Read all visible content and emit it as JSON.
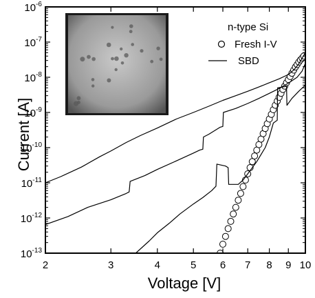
{
  "chart_data": {
    "type": "scatter",
    "xlabel": "Voltage [V]",
    "ylabel": "Current [A]",
    "x_scale": "log",
    "y_scale": "log",
    "xlim": [
      2,
      10
    ],
    "ylim": [
      1e-13,
      1e-06
    ],
    "x_ticks": [
      {
        "value": 2,
        "label": "2"
      },
      {
        "value": 3,
        "label": "3"
      },
      {
        "value": 4,
        "label": "4"
      },
      {
        "value": 5,
        "label": "5"
      },
      {
        "value": 6,
        "label": "6"
      },
      {
        "value": 7,
        "label": "7"
      },
      {
        "value": 8,
        "label": "8"
      },
      {
        "value": 9,
        "label": "9"
      },
      {
        "value": 10,
        "label": "10"
      }
    ],
    "y_ticks": [
      {
        "value": 1e-13,
        "base": "10",
        "exp": "-13"
      },
      {
        "value": 1e-12,
        "base": "10",
        "exp": "-12"
      },
      {
        "value": 1e-11,
        "base": "10",
        "exp": "-11"
      },
      {
        "value": 1e-10,
        "base": "10",
        "exp": "-10"
      },
      {
        "value": 1e-09,
        "base": "10",
        "exp": "-9"
      },
      {
        "value": 1e-08,
        "base": "10",
        "exp": "-8"
      },
      {
        "value": 1e-07,
        "base": "10",
        "exp": "-7"
      },
      {
        "value": 1e-06,
        "base": "10",
        "exp": "-6"
      }
    ],
    "legend": {
      "title": "n-type Si",
      "position": "top-right",
      "entries": [
        {
          "label": "Fresh I-V",
          "marker": "open-circle"
        },
        {
          "label": "SBD",
          "marker": "line"
        }
      ]
    },
    "inset": {
      "type": "micrograph",
      "position": "top-left"
    },
    "series": [
      {
        "name": "Fresh I-V",
        "style": "markers",
        "points": [
          [
            5.9,
            1e-13
          ],
          [
            6.0,
            1.8e-13
          ],
          [
            6.1,
            3e-13
          ],
          [
            6.2,
            5e-13
          ],
          [
            6.3,
            8e-13
          ],
          [
            6.4,
            1.3e-12
          ],
          [
            6.5,
            2e-12
          ],
          [
            6.6,
            3.2e-12
          ],
          [
            6.7,
            5e-12
          ],
          [
            6.8,
            7.8e-12
          ],
          [
            6.9,
            1.2e-11
          ],
          [
            7.0,
            1.8e-11
          ],
          [
            7.1,
            2.7e-11
          ],
          [
            7.2,
            4e-11
          ],
          [
            7.3,
            5.8e-11
          ],
          [
            7.4,
            8.5e-11
          ],
          [
            7.5,
            1.22e-10
          ],
          [
            7.6,
            1.75e-10
          ],
          [
            7.7,
            2.5e-10
          ],
          [
            7.8,
            3.5e-10
          ],
          [
            7.9,
            4.8e-10
          ],
          [
            8.0,
            6.5e-10
          ],
          [
            8.1,
            8.8e-10
          ],
          [
            8.2,
            1.2e-09
          ],
          [
            8.3,
            1.6e-09
          ],
          [
            8.4,
            2.1e-09
          ],
          [
            8.5,
            2.7e-09
          ],
          [
            8.6,
            3.5e-09
          ],
          [
            8.7,
            4.5e-09
          ],
          [
            8.8,
            5.6e-09
          ],
          [
            8.9,
            7e-09
          ],
          [
            9.0,
            8.6e-09
          ],
          [
            9.1,
            1.05e-08
          ],
          [
            9.2,
            1.3e-08
          ],
          [
            9.3,
            1.6e-08
          ],
          [
            9.4,
            1.95e-08
          ],
          [
            9.5,
            2.3e-08
          ],
          [
            9.6,
            2.7e-08
          ],
          [
            9.7,
            3.1e-08
          ],
          [
            9.8,
            3.5e-08
          ],
          [
            9.9,
            4e-08
          ]
        ]
      },
      {
        "name": "SBD",
        "style": "line",
        "points": [
          [
            2.0,
            1e-11
          ],
          [
            2.2,
            1.5e-11
          ],
          [
            2.5,
            2.8e-11
          ],
          [
            2.8,
            5.5e-11
          ],
          [
            3.0,
            8e-11
          ],
          [
            3.3,
            1.4e-10
          ],
          [
            3.6,
            2.2e-10
          ],
          [
            4.0,
            3.6e-10
          ],
          [
            4.5,
            6.5e-10
          ],
          [
            5.0,
            1e-09
          ],
          [
            5.5,
            1.5e-09
          ],
          [
            6.0,
            2.2e-09
          ],
          [
            6.5,
            3e-09
          ],
          [
            7.0,
            4e-09
          ],
          [
            7.5,
            5.3e-09
          ],
          [
            8.0,
            7e-09
          ],
          [
            8.5,
            9e-09
          ],
          [
            9.0,
            1.2e-08
          ],
          [
            9.3,
            1.6e-08
          ],
          [
            9.6,
            2.4e-08
          ],
          [
            9.8,
            3.5e-08
          ],
          [
            10.0,
            5e-08
          ]
        ]
      },
      {
        "name": "SBD",
        "style": "line",
        "points": [
          [
            2.0,
            6.5e-13
          ],
          [
            2.3,
            1.1e-12
          ],
          [
            2.6,
            2e-12
          ],
          [
            3.0,
            3.3e-12
          ],
          [
            3.3,
            5e-12
          ],
          [
            3.36,
            5.5e-12
          ],
          [
            3.38,
            1.1e-11
          ],
          [
            3.7,
            1.6e-11
          ],
          [
            4.0,
            2.4e-11
          ],
          [
            4.5,
            4.2e-11
          ],
          [
            5.0,
            7e-11
          ],
          [
            5.2,
            8.5e-11
          ],
          [
            5.3,
            9e-11
          ],
          [
            5.32,
            2e-10
          ],
          [
            5.5,
            2.4e-10
          ],
          [
            5.9,
            3.8e-10
          ],
          [
            6.0,
            4e-10
          ],
          [
            6.02,
            1e-09
          ],
          [
            6.5,
            1.3e-09
          ],
          [
            7.0,
            1.8e-09
          ],
          [
            7.5,
            2.5e-09
          ],
          [
            8.0,
            3.5e-09
          ],
          [
            8.5,
            4.8e-09
          ],
          [
            9.0,
            6.8e-09
          ],
          [
            9.5,
            1e-08
          ],
          [
            9.8,
            1.5e-08
          ],
          [
            10.0,
            2.5e-08
          ]
        ]
      },
      {
        "name": "SBD",
        "style": "line",
        "points": [
          [
            3.5,
            1e-13
          ],
          [
            3.8,
            2.2e-13
          ],
          [
            4.0,
            3.8e-13
          ],
          [
            4.3,
            7e-13
          ],
          [
            4.6,
            1.3e-12
          ],
          [
            5.0,
            2.5e-12
          ],
          [
            5.3,
            3.8e-12
          ],
          [
            5.6,
            6e-12
          ],
          [
            5.75,
            8e-12
          ],
          [
            5.78,
            3.4e-11
          ],
          [
            6.1,
            3e-11
          ],
          [
            6.2,
            2.7e-11
          ],
          [
            6.22,
            9e-12
          ],
          [
            6.6,
            9e-12
          ],
          [
            6.8,
            1.2e-11
          ],
          [
            7.0,
            1.8e-11
          ],
          [
            7.4,
            4e-11
          ],
          [
            7.8,
            1e-10
          ],
          [
            8.0,
            2e-10
          ],
          [
            8.2,
            5e-10
          ],
          [
            8.4,
            6e-10
          ],
          [
            8.42,
            5e-09
          ],
          [
            8.9,
            5.5e-09
          ],
          [
            8.92,
            1.6e-09
          ],
          [
            9.2,
            2.5e-09
          ],
          [
            9.6,
            4e-09
          ],
          [
            10.0,
            6e-09
          ]
        ]
      }
    ]
  }
}
